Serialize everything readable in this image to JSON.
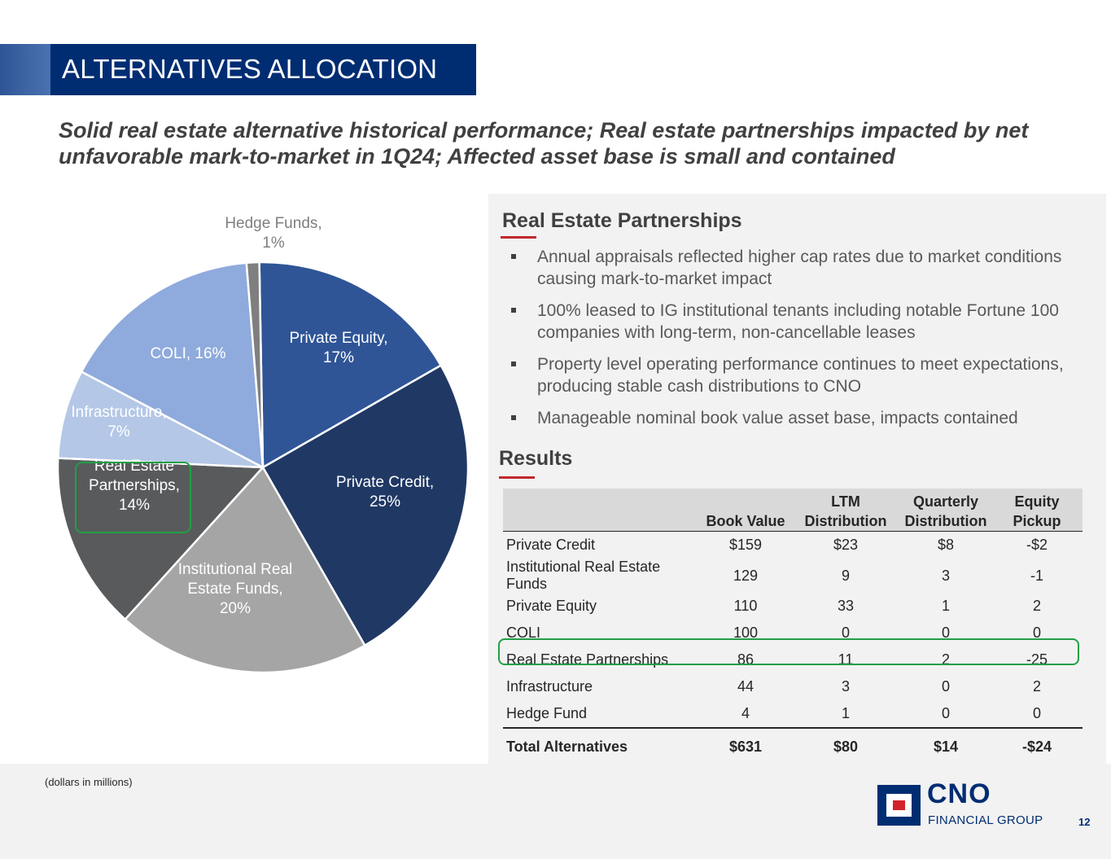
{
  "header": {
    "title": "ALTERNATIVES ALLOCATION"
  },
  "subtitle": "Solid real estate alternative historical performance; Real estate partnerships impacted by net unfavorable mark-to-market in 1Q24; Affected asset base is small and contained",
  "chart_data": {
    "type": "pie",
    "title": "",
    "start_angle_deg": -1,
    "clockwise": true,
    "slices": [
      {
        "label": "Private Equity",
        "pct_label": "17%",
        "value": 17,
        "color": "#2f5597",
        "text_color": "#ffffff"
      },
      {
        "label": "Private Credit",
        "pct_label": "25%",
        "value": 25,
        "color": "#203864",
        "text_color": "#ffffff"
      },
      {
        "label": "Institutional Real Estate Funds",
        "pct_label": "20%",
        "value": 20,
        "color": "#a5a5a5",
        "text_color": "#ffffff"
      },
      {
        "label": "Real Estate Partnerships",
        "pct_label": "14%",
        "value": 14,
        "color": "#595a5c",
        "text_color": "#ffffff"
      },
      {
        "label": "Infrastructure",
        "pct_label": "7%",
        "value": 7,
        "color": "#b4c7e7",
        "text_color": "#ffffff"
      },
      {
        "label": "COLI",
        "pct_label": "16%",
        "value": 16,
        "color": "#8faadc",
        "text_color": "#ffffff"
      },
      {
        "label": "Hedge Funds",
        "pct_label": "1%",
        "value": 1,
        "color": "#7f7f7f",
        "text_color": "#7f7f7f"
      }
    ],
    "label_lines": [
      [
        "Private Equity,",
        "17%"
      ],
      [
        "Private Credit,",
        "25%"
      ],
      [
        "Institutional Real",
        "Estate Funds,",
        "20%"
      ],
      [
        "Real Estate",
        "Partnerships,",
        "14%"
      ],
      [
        "Infrastructure,",
        "7%"
      ],
      [
        "COLI, 16%"
      ],
      [
        "Hedge Funds,",
        "1%"
      ]
    ],
    "highlighted_slice": "Real Estate Partnerships"
  },
  "real_estate": {
    "heading": "Real Estate Partnerships",
    "bullets": [
      "Annual appraisals reflected higher cap rates due to market conditions causing mark-to-market impact",
      "100% leased to IG institutional tenants including notable Fortune 100 companies with long-term, non-cancellable leases",
      "Property level operating performance continues to meet expectations, producing stable cash distributions to CNO",
      "Manageable nominal book value asset base, impacts contained"
    ]
  },
  "results": {
    "heading": "Results",
    "columns": [
      "",
      "Book Value",
      "LTM\nDistribution",
      "Quarterly\nDistribution",
      "Equity\nPickup"
    ],
    "rows": [
      [
        "Private Credit",
        "$159",
        "$23",
        "$8",
        "-$2"
      ],
      [
        "Institutional Real Estate Funds",
        "129",
        "9",
        "3",
        "-1"
      ],
      [
        "Private Equity",
        "110",
        "33",
        "1",
        "2"
      ],
      [
        "COLI",
        "100",
        "0",
        "0",
        "0"
      ],
      [
        "Real Estate Partnerships",
        "86",
        "11",
        "2",
        "-25"
      ],
      [
        "Infrastructure",
        "44",
        "3",
        "0",
        "2"
      ],
      [
        "Hedge Fund",
        "4",
        "1",
        "0",
        "0"
      ]
    ],
    "total": [
      "Total Alternatives",
      "$631",
      "$80",
      "$14",
      "-$24"
    ],
    "highlighted_row": "Real Estate Partnerships"
  },
  "footnote": "(dollars in millions)",
  "logo": {
    "name": "CNO",
    "sub": "FINANCIAL GROUP"
  },
  "page_number": "12",
  "colors": {
    "navy": "#002d72",
    "accent_red": "#c0282d",
    "highlight_green": "#21a045",
    "panel_gray": "#f2f2f2"
  }
}
